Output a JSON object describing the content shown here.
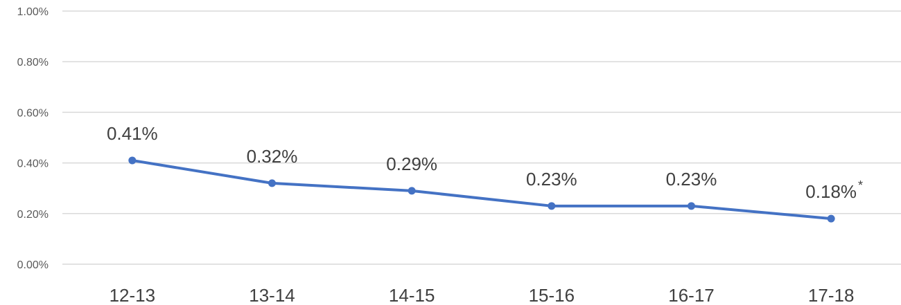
{
  "chart_data": {
    "type": "line",
    "title": "",
    "xlabel": "",
    "ylabel": "",
    "categories": [
      "12-13",
      "13-14",
      "14-15",
      "15-16",
      "16-17",
      "17-18"
    ],
    "series": [
      {
        "values": [
          0.41,
          0.32,
          0.29,
          0.23,
          0.23,
          0.18
        ],
        "color": "#4472C4"
      }
    ],
    "data_labels": [
      "0.41%",
      "0.32%",
      "0.29%",
      "0.23%",
      "0.23%",
      "0.18%"
    ],
    "data_label_notes": [
      "",
      "",
      "",
      "",
      "",
      "*"
    ],
    "y_unit": "%",
    "ylim": [
      0,
      1.0
    ],
    "yticks": [
      "0.00%",
      "0.20%",
      "0.40%",
      "0.60%",
      "0.80%",
      "1.00%"
    ],
    "grid": true,
    "legend": "none",
    "colors": {
      "line": "#4472C4",
      "grid": "#D9D9D9"
    }
  }
}
